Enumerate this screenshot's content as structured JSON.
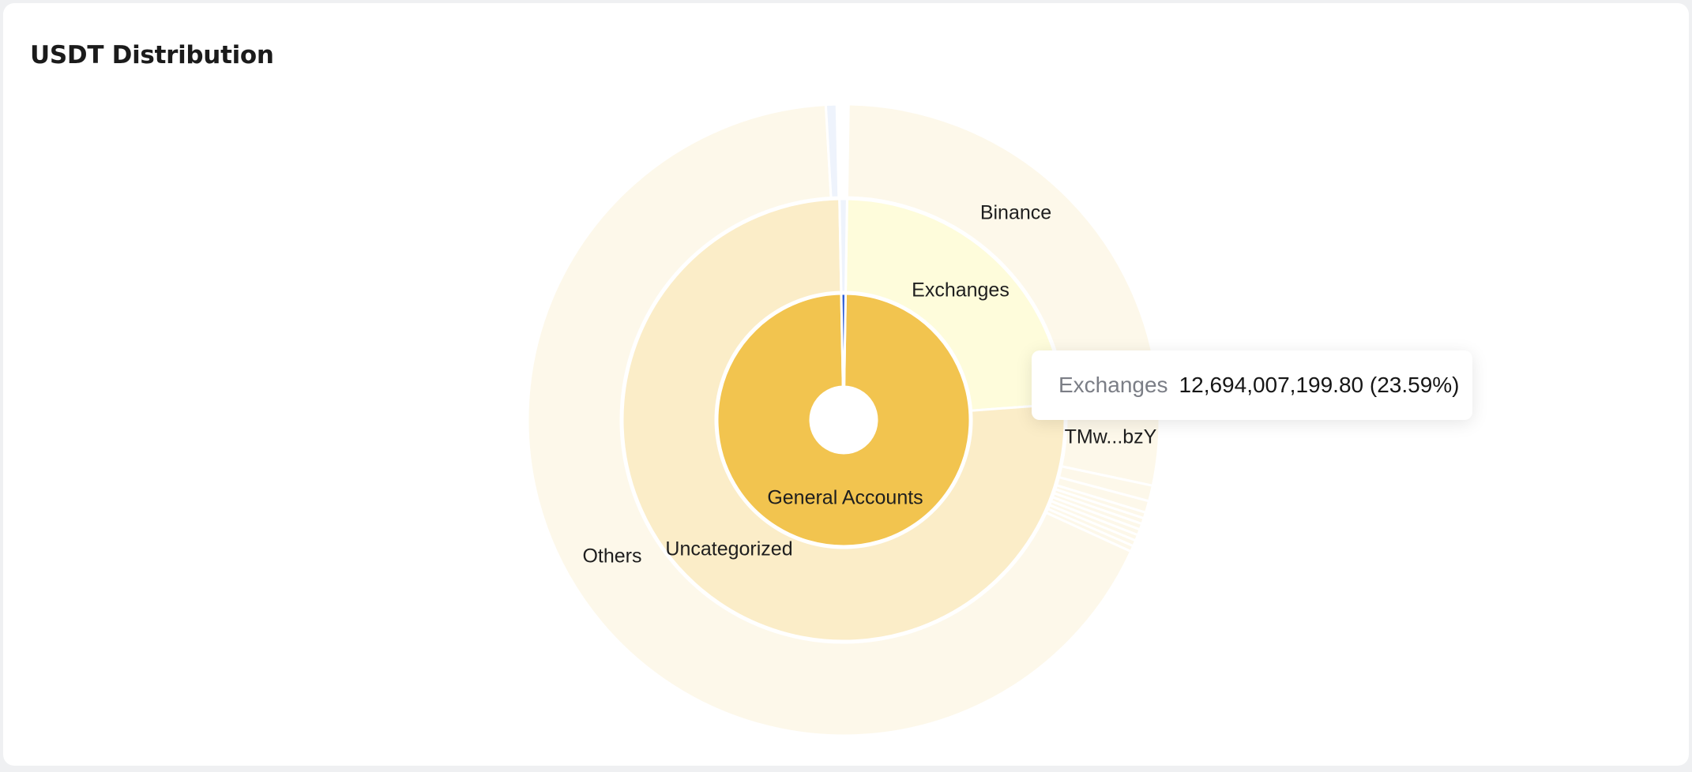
{
  "page": {
    "title": "USDT Distribution"
  },
  "colors": {
    "ring1": "#f2c44f",
    "ring2": "#fbedc8",
    "ring2_exchanges": "#fefcdb",
    "ring3": "#fdf8ea",
    "accent_blue": "#2a5bd7",
    "separator": "#ffffff",
    "background": "#eff0f2",
    "card": "#ffffff"
  },
  "chart_data": {
    "type": "sunburst",
    "title": "USDT Distribution",
    "unit": "USDT",
    "rings": [
      {
        "level": 1,
        "segments": [
          {
            "name": "General Accounts",
            "share": 0.9945,
            "color": "#f2c44f",
            "label": "General Accounts"
          },
          {
            "name": "",
            "share": 0.0055,
            "color": "#2a5bd7",
            "label": ""
          }
        ]
      },
      {
        "level": 2,
        "segments": [
          {
            "name": "Exchanges",
            "share": 0.2359,
            "color": "#fefcdb",
            "label": "Exchanges"
          },
          {
            "name": "Uncategorized",
            "share": 0.7586,
            "color": "#fbedc8",
            "label": "Uncategorized"
          },
          {
            "name": "",
            "share": 0.0055,
            "color": "#eef3fc",
            "label": ""
          }
        ]
      },
      {
        "level": 3,
        "segments": [
          {
            "name": "Binance",
            "share": 0.2359,
            "color": "#fdf8ea",
            "label": "Binance"
          },
          {
            "name": "TMw...bzY",
            "share": 0.045,
            "color": "#fdf8ea",
            "label": "TMw...bzY"
          },
          {
            "name": "",
            "share": 0.008,
            "color": "#fdf8ea",
            "label": ""
          },
          {
            "name": "",
            "share": 0.006,
            "color": "#fdf8ea",
            "label": ""
          },
          {
            "name": "",
            "share": 0.003,
            "color": "#fdf8ea",
            "label": ""
          },
          {
            "name": "",
            "share": 0.003,
            "color": "#fdf8ea",
            "label": ""
          },
          {
            "name": "",
            "share": 0.003,
            "color": "#fdf8ea",
            "label": ""
          },
          {
            "name": "",
            "share": 0.003,
            "color": "#fdf8ea",
            "label": ""
          },
          {
            "name": "",
            "share": 0.003,
            "color": "#fdf8ea",
            "label": ""
          },
          {
            "name": "",
            "share": 0.003,
            "color": "#fdf8ea",
            "label": ""
          },
          {
            "name": "",
            "share": 0.003,
            "color": "#fdf8ea",
            "label": ""
          },
          {
            "name": "Others",
            "share": 0.6726,
            "color": "#fdf8ea",
            "label": "Others"
          },
          {
            "name": "",
            "share": 0.0055,
            "color": "#eef3fc",
            "label": ""
          }
        ]
      }
    ],
    "tooltip": {
      "name": "Exchanges",
      "value": "12,694,007,199.80 (23.59%)"
    }
  }
}
